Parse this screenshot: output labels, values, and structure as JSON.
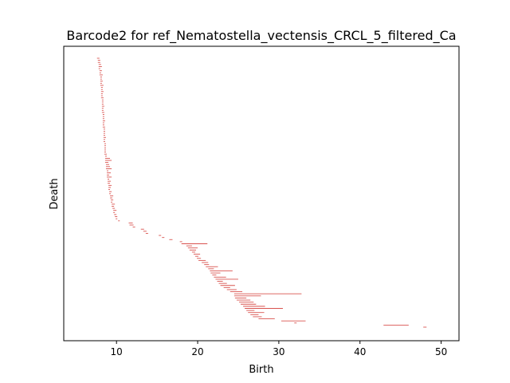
{
  "chart_data": {
    "type": "barcode",
    "title": "Barcode2 for ref_Nematostella_vectensis_CRCL_5_filtered_Ca",
    "xlabel": "Birth",
    "ylabel": "Death",
    "xlim": [
      3.5,
      52.2
    ],
    "x_ticks": [
      10,
      20,
      30,
      40,
      50
    ],
    "y_ticks": [],
    "bar_color": "#d9534f",
    "frame_color": "#000000",
    "bars": [
      [
        7.6,
        7.9
      ],
      [
        7.7,
        8.0
      ],
      [
        7.7,
        8.0
      ],
      [
        7.8,
        8.1
      ],
      [
        7.8,
        8.2
      ],
      [
        7.8,
        8.0
      ],
      [
        7.9,
        8.2
      ],
      [
        7.9,
        8.1
      ],
      [
        7.9,
        8.3
      ],
      [
        8.0,
        8.2
      ],
      [
        8.0,
        8.2
      ],
      [
        8.0,
        8.3
      ],
      [
        8.0,
        8.2
      ],
      [
        8.0,
        8.4
      ],
      [
        8.1,
        8.3
      ],
      [
        8.1,
        8.3
      ],
      [
        8.1,
        8.4
      ],
      [
        8.1,
        8.3
      ],
      [
        8.1,
        8.3
      ],
      [
        8.1,
        8.4
      ],
      [
        8.2,
        8.4
      ],
      [
        8.2,
        8.4
      ],
      [
        8.2,
        8.4
      ],
      [
        8.2,
        8.5
      ],
      [
        8.2,
        8.4
      ],
      [
        8.2,
        8.4
      ],
      [
        8.2,
        8.5
      ],
      [
        8.3,
        8.5
      ],
      [
        8.3,
        8.5
      ],
      [
        8.3,
        8.5
      ],
      [
        8.3,
        8.6
      ],
      [
        8.3,
        8.5
      ],
      [
        8.3,
        8.5
      ],
      [
        8.3,
        8.6
      ],
      [
        8.4,
        8.6
      ],
      [
        8.4,
        8.6
      ],
      [
        8.4,
        8.6
      ],
      [
        8.4,
        8.6
      ],
      [
        8.4,
        8.7
      ],
      [
        8.4,
        8.6
      ],
      [
        8.4,
        8.6
      ],
      [
        8.5,
        8.7
      ],
      [
        8.5,
        8.7
      ],
      [
        8.5,
        8.7
      ],
      [
        8.5,
        8.7
      ],
      [
        8.5,
        8.7
      ],
      [
        8.5,
        8.8
      ],
      [
        8.6,
        8.8
      ],
      [
        8.6,
        9.2
      ],
      [
        8.6,
        9.4
      ],
      [
        8.6,
        9.0
      ],
      [
        8.7,
        9.1
      ],
      [
        8.7,
        9.2
      ],
      [
        8.7,
        9.4
      ],
      [
        8.8,
        9.0
      ],
      [
        8.8,
        9.3
      ],
      [
        8.8,
        9.1
      ],
      [
        8.8,
        9.4
      ],
      [
        8.9,
        9.1
      ],
      [
        8.9,
        9.3
      ],
      [
        8.9,
        9.2
      ],
      [
        9.0,
        9.4
      ],
      [
        9.0,
        9.3
      ],
      [
        9.0,
        9.2
      ],
      [
        9.1,
        9.4
      ],
      [
        9.1,
        9.3
      ],
      [
        9.2,
        9.6
      ],
      [
        9.2,
        9.5
      ],
      [
        9.3,
        9.6
      ],
      [
        9.3,
        9.5
      ],
      [
        9.4,
        9.8
      ],
      [
        9.4,
        9.7
      ],
      [
        9.5,
        9.8
      ],
      [
        9.6,
        10.0
      ],
      [
        9.6,
        9.8
      ],
      [
        9.7,
        10.0
      ],
      [
        9.8,
        10.1
      ],
      [
        9.9,
        10.1
      ],
      [
        10.2,
        10.4
      ],
      [
        11.5,
        12.0
      ],
      [
        11.6,
        12.1
      ],
      [
        12.0,
        12.3
      ],
      [
        13.0,
        13.4
      ],
      [
        13.3,
        13.7
      ],
      [
        13.6,
        13.9
      ],
      [
        15.2,
        15.5
      ],
      [
        15.6,
        15.9
      ],
      [
        16.5,
        16.9
      ],
      [
        17.8,
        18.1
      ],
      [
        18.0,
        21.2
      ],
      [
        18.6,
        19.3
      ],
      [
        18.8,
        20.0
      ],
      [
        19.0,
        19.8
      ],
      [
        19.3,
        19.7
      ],
      [
        19.5,
        20.3
      ],
      [
        19.7,
        20.1
      ],
      [
        19.9,
        20.4
      ],
      [
        20.1,
        21.0
      ],
      [
        20.5,
        21.3
      ],
      [
        20.8,
        21.4
      ],
      [
        21.0,
        22.5
      ],
      [
        21.3,
        22.0
      ],
      [
        21.5,
        24.3
      ],
      [
        21.6,
        22.8
      ],
      [
        21.8,
        22.3
      ],
      [
        22.0,
        23.5
      ],
      [
        22.2,
        25.0
      ],
      [
        22.4,
        23.1
      ],
      [
        22.6,
        23.6
      ],
      [
        22.8,
        24.6
      ],
      [
        23.2,
        24.0
      ],
      [
        23.6,
        24.8
      ],
      [
        24.0,
        25.5
      ],
      [
        24.5,
        32.8
      ],
      [
        24.5,
        27.8
      ],
      [
        24.6,
        26.0
      ],
      [
        24.8,
        26.5
      ],
      [
        25.1,
        26.9
      ],
      [
        25.3,
        27.2
      ],
      [
        25.6,
        28.3
      ],
      [
        25.8,
        30.5
      ],
      [
        26.0,
        27.0
      ],
      [
        26.2,
        28.2
      ],
      [
        26.5,
        27.5
      ],
      [
        26.8,
        27.9
      ],
      [
        27.5,
        29.5
      ],
      [
        30.3,
        33.3
      ],
      [
        31.9,
        32.2
      ],
      [
        42.9,
        46.0
      ],
      [
        47.8,
        48.2
      ]
    ]
  }
}
